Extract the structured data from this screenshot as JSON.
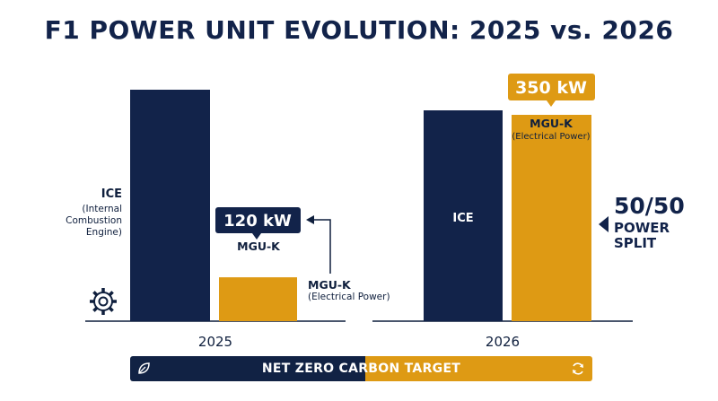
{
  "title": "F1 POWER UNIT EVOLUTION: 2025 vs. 2026",
  "colors": {
    "ice": "#12234a",
    "mguk": "#de9a14",
    "text": "#0f1f3d"
  },
  "chart_data": {
    "type": "bar",
    "categories": [
      "2025",
      "2026"
    ],
    "series": [
      {
        "name": "ICE",
        "labels": [
          "ICE\n(Internal\nCombustion\nEngine)",
          "ICE"
        ],
        "values": [
          null,
          null
        ]
      },
      {
        "name": "MGU-K",
        "labels": [
          "MGU-K",
          "MGU-K\n(Electrical Power)"
        ],
        "values": [
          120,
          350
        ],
        "unit": "kW"
      }
    ],
    "value_labels": [
      "120 kW",
      "350 kW"
    ],
    "annotations": {
      "mguk_2025_label": "MGU-K",
      "mguk_2025_sub": "(Electrical Power)",
      "split_number": "50/50",
      "split_line1": "POWER",
      "split_line2": "SPLIT"
    },
    "grid": false
  },
  "banner": {
    "text": "NET ZERO CARBON TARGET",
    "left_icon": "leaf-icon",
    "right_icon": "refresh-icon"
  }
}
